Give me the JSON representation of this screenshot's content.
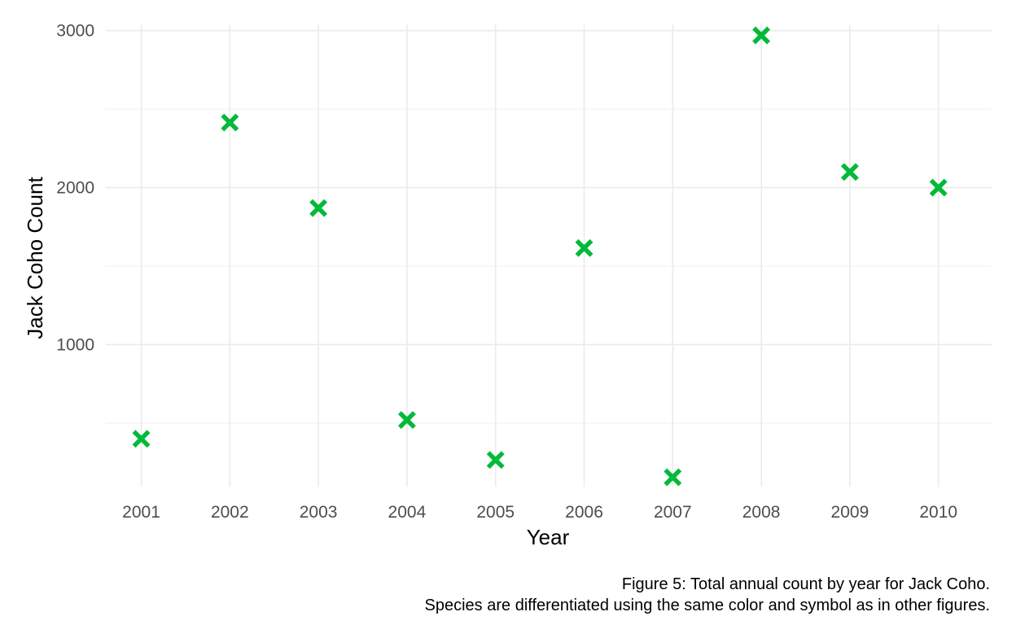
{
  "chart_data": {
    "type": "scatter",
    "x": [
      2001,
      2002,
      2003,
      2004,
      2005,
      2006,
      2007,
      2008,
      2009,
      2010
    ],
    "y": [
      400,
      2415,
      1870,
      520,
      265,
      1615,
      155,
      2970,
      2100,
      2000
    ],
    "x_ticks": [
      "2001",
      "2002",
      "2003",
      "2004",
      "2005",
      "2006",
      "2007",
      "2008",
      "2009",
      "2010"
    ],
    "y_ticks": [
      1000,
      2000,
      3000
    ],
    "y_minor_ticks": [
      500,
      1500,
      2500
    ],
    "xlim": [
      2000.6,
      2010.6
    ],
    "ylim": [
      95,
      3040
    ],
    "xlabel": "Year",
    "ylabel": "Jack Coho Count",
    "marker": "x",
    "marker_color": "#00ba38",
    "grid": true,
    "legend": "none",
    "caption": [
      "Figure 5: Total annual count by year for Jack Coho.",
      "Species are differentiated using the same color and symbol as in other figures."
    ]
  }
}
